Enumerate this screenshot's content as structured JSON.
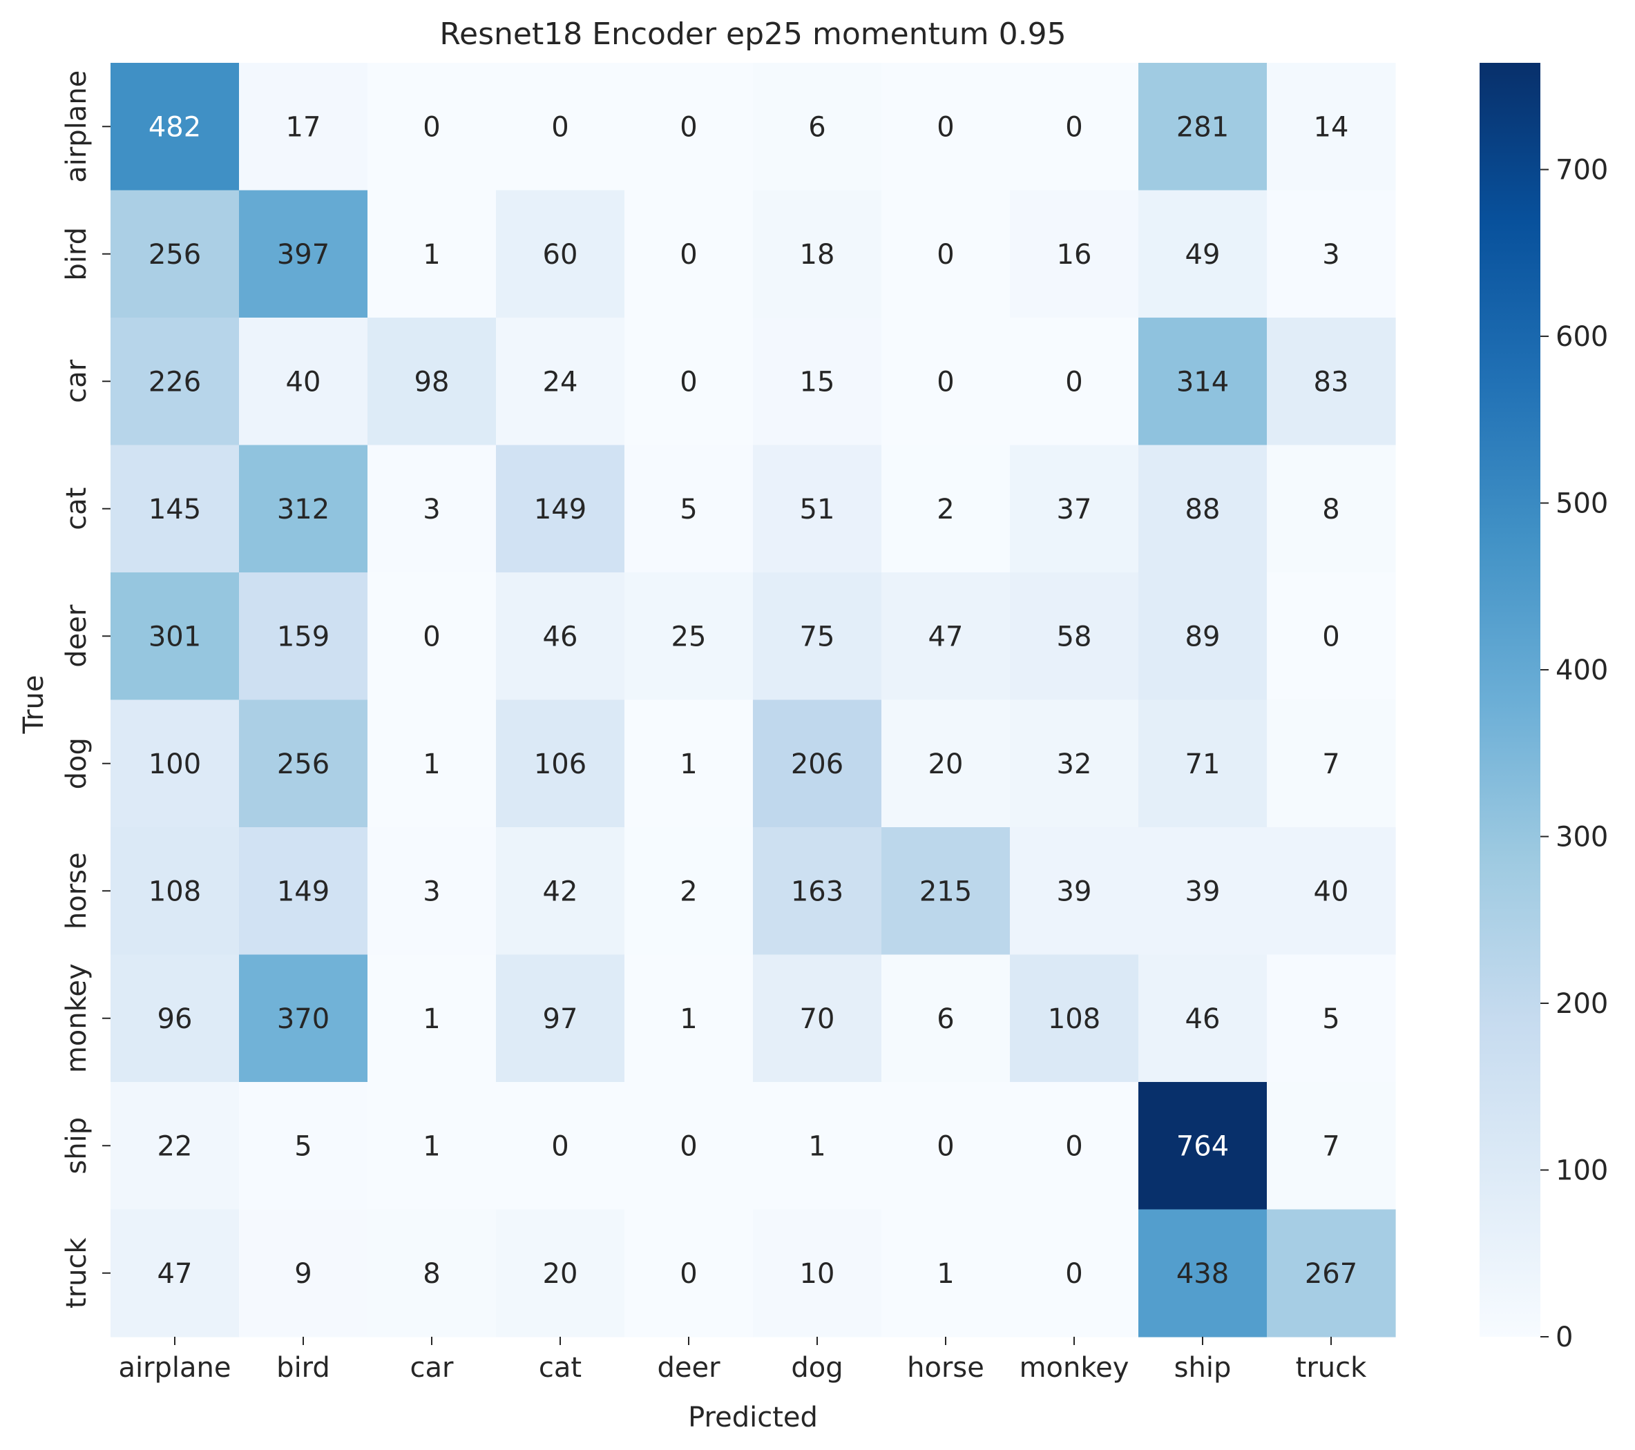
{
  "chart_data": {
    "type": "heatmap",
    "title": "Resnet18 Encoder ep25 momentum 0.95",
    "xlabel": "Predicted",
    "ylabel": "True",
    "x_categories": [
      "airplane",
      "bird",
      "car",
      "cat",
      "deer",
      "dog",
      "horse",
      "monkey",
      "ship",
      "truck"
    ],
    "y_categories": [
      "airplane",
      "bird",
      "car",
      "cat",
      "deer",
      "dog",
      "horse",
      "monkey",
      "ship",
      "truck"
    ],
    "values": [
      [
        482,
        17,
        0,
        0,
        0,
        6,
        0,
        0,
        281,
        14
      ],
      [
        256,
        397,
        1,
        60,
        0,
        18,
        0,
        16,
        49,
        3
      ],
      [
        226,
        40,
        98,
        24,
        0,
        15,
        0,
        0,
        314,
        83
      ],
      [
        145,
        312,
        3,
        149,
        5,
        51,
        2,
        37,
        88,
        8
      ],
      [
        301,
        159,
        0,
        46,
        25,
        75,
        47,
        58,
        89,
        0
      ],
      [
        100,
        256,
        1,
        106,
        1,
        206,
        20,
        32,
        71,
        7
      ],
      [
        108,
        149,
        3,
        42,
        2,
        163,
        215,
        39,
        39,
        40
      ],
      [
        96,
        370,
        1,
        97,
        1,
        70,
        6,
        108,
        46,
        5
      ],
      [
        22,
        5,
        1,
        0,
        0,
        1,
        0,
        0,
        764,
        7
      ],
      [
        47,
        9,
        8,
        20,
        0,
        10,
        1,
        0,
        438,
        267
      ]
    ],
    "colorbar": {
      "colormap": "Blues",
      "range": [
        0,
        764
      ],
      "ticks": [
        0,
        100,
        200,
        300,
        400,
        500,
        600,
        700
      ]
    },
    "legend": "colorbar-right",
    "grid": false
  }
}
